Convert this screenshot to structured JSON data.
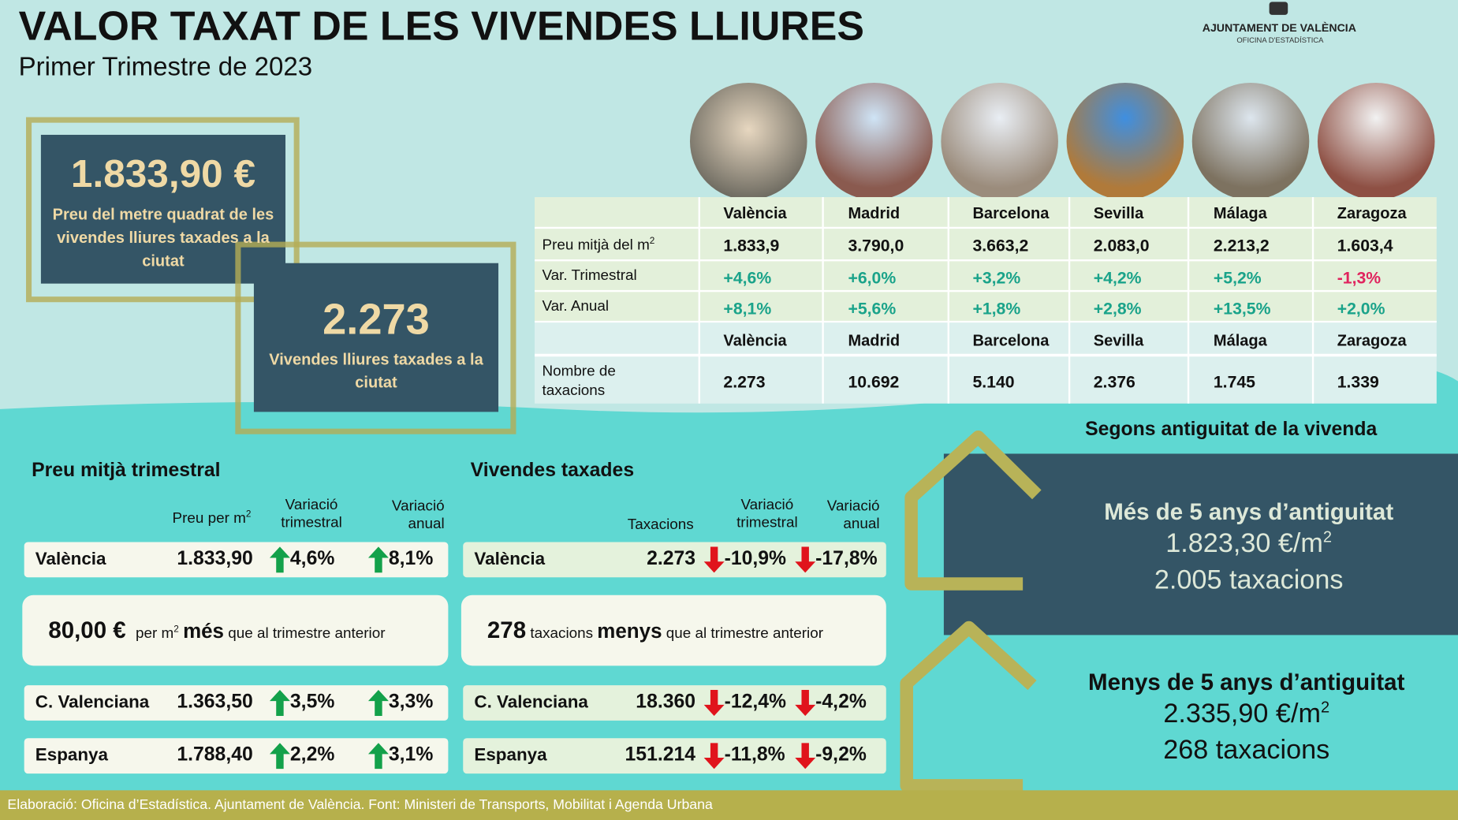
{
  "header": {
    "title": "VALOR TAXAT DE LES VIVENDES LLIURES",
    "subtitle": "Primer Trimestre de 2023",
    "organization": "AJUNTAMENT DE VALÈNCIA",
    "department": "OFICINA D'ESTADÍSTICA"
  },
  "highlights": [
    {
      "value": "1.833,90 €",
      "label": "Preu del metre quadrat de les vivendes lliures taxades a la ciutat"
    },
    {
      "value": "2.273",
      "label": "Vivendes lliures taxades a la ciutat"
    }
  ],
  "city_table": {
    "cities": [
      "València",
      "Madrid",
      "Barcelona",
      "Sevilla",
      "Málaga",
      "Zaragoza"
    ],
    "rows": [
      {
        "label": "Preu mitjà del m",
        "label_sup": "2",
        "values": [
          "1.833,9",
          "3.790,0",
          "3.663,2",
          "2.083,0",
          "2.213,2",
          "1.603,4"
        ]
      },
      {
        "label": "Var. Trimestral",
        "values": [
          "+4,6%",
          "+6,0%",
          "+3,2%",
          "+4,2%",
          "+5,2%",
          "-1,3%"
        ]
      },
      {
        "label": "Var. Anual",
        "values": [
          "+8,1%",
          "+5,6%",
          "+1,8%",
          "+2,8%",
          "+13,5%",
          "+2,0%"
        ]
      }
    ],
    "count_row": {
      "label": "Nombre de taxacions",
      "values": [
        "2.273",
        "10.692",
        "5.140",
        "2.376",
        "1.745",
        "1.339"
      ]
    }
  },
  "price_panel": {
    "title": "Preu mitjà trimestral",
    "columns": [
      {
        "label": "Preu per m",
        "sup": "2"
      },
      {
        "label": "Variació trimestral"
      },
      {
        "label": "Variació anual"
      }
    ],
    "rows": [
      {
        "name": "València",
        "value": "1.833,90",
        "quarterly": "4,6%",
        "annual": "8,1%"
      },
      {
        "name": "C. Valenciana",
        "value": "1.363,50",
        "quarterly": "3,5%",
        "annual": "3,3%"
      },
      {
        "name": "Espanya",
        "value": "1.788,40",
        "quarterly": "2,2%",
        "annual": "3,1%"
      }
    ],
    "note": {
      "amount": "80,00 €",
      "unit": "per m",
      "unit_sup": "2",
      "direction": "més",
      "text": "que al trimestre anterior"
    }
  },
  "count_panel": {
    "title": "Vivendes taxades",
    "columns": [
      {
        "label": "Taxacions"
      },
      {
        "label": "Variació trimestral"
      },
      {
        "label": "Variació anual"
      }
    ],
    "rows": [
      {
        "name": "València",
        "value": "2.273",
        "quarterly": "-10,9%",
        "annual": "-17,8%"
      },
      {
        "name": "C. Valenciana",
        "value": "18.360",
        "quarterly": "-12,4%",
        "annual": "-4,2%"
      },
      {
        "name": "Espanya",
        "value": "151.214",
        "quarterly": "-11,8%",
        "annual": "-9,2%"
      }
    ],
    "note": {
      "amount": "278",
      "unit": "taxacions",
      "direction": "menys",
      "text": "que al trimestre anterior"
    }
  },
  "age": {
    "title": "Segons antiguitat de la vivenda",
    "groups": [
      {
        "label": "Més de 5 anys d’antiguitat",
        "price": "1.823,30 €/m",
        "price_sup": "2",
        "count": "2.005 taxacions"
      },
      {
        "label": "Menys de 5 anys d’antiguitat",
        "price": "2.335,90 €/m",
        "price_sup": "2",
        "count": "268 taxacions"
      }
    ]
  },
  "footer": "Elaboració: Oficina d’Estadística. Ajuntament de València. Font: Ministeri de Transports, Mobilitat i Agenda Urbana"
}
